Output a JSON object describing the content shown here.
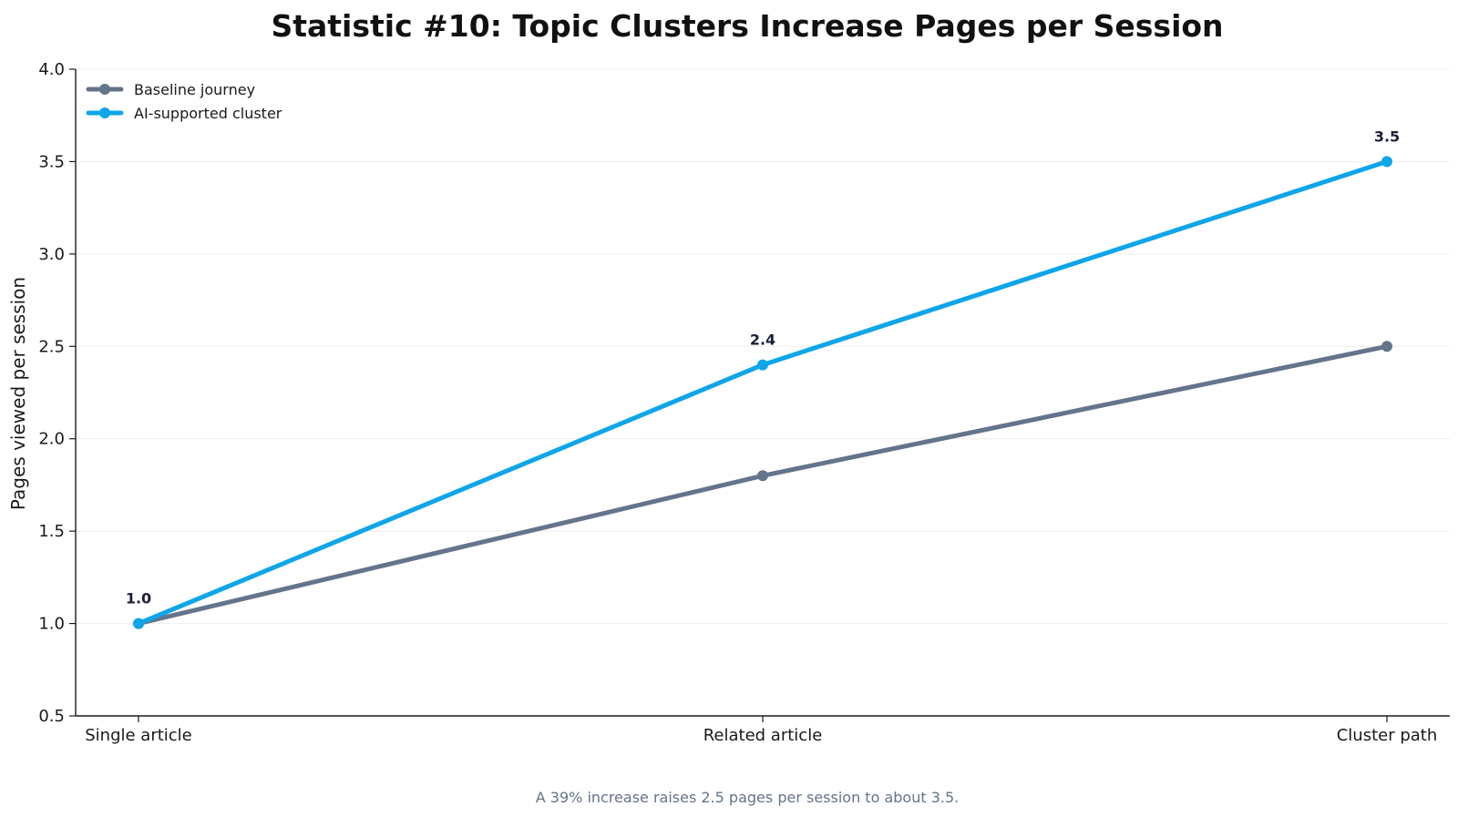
{
  "chart_data": {
    "type": "line",
    "title": "Statistic #10: Topic Clusters Increase Pages per Session",
    "xlabel": "",
    "ylabel": "Pages viewed per session",
    "categories": [
      "Single article",
      "Related article",
      "Cluster path"
    ],
    "ylim": [
      0.5,
      4.0
    ],
    "yticks": [
      "0.5",
      "1.0",
      "1.5",
      "2.0",
      "2.5",
      "3.0",
      "3.5",
      "4.0"
    ],
    "grid": "horizontal",
    "legend_position": "top-left",
    "series": [
      {
        "name": "Baseline journey",
        "values": [
          1.0,
          1.8,
          2.5
        ],
        "color": "#64748b"
      },
      {
        "name": "AI-supported cluster",
        "values": [
          1.0,
          2.4,
          3.5
        ],
        "color": "#0ea5e9"
      }
    ],
    "data_labels": [
      {
        "category": "Single article",
        "value": 1.0,
        "text": "1.0"
      },
      {
        "category": "Related article",
        "value": 2.4,
        "text": "2.4"
      },
      {
        "category": "Cluster path",
        "value": 3.5,
        "text": "3.5"
      }
    ],
    "caption": "A 39% increase raises 2.5 pages per session to about 3.5."
  }
}
